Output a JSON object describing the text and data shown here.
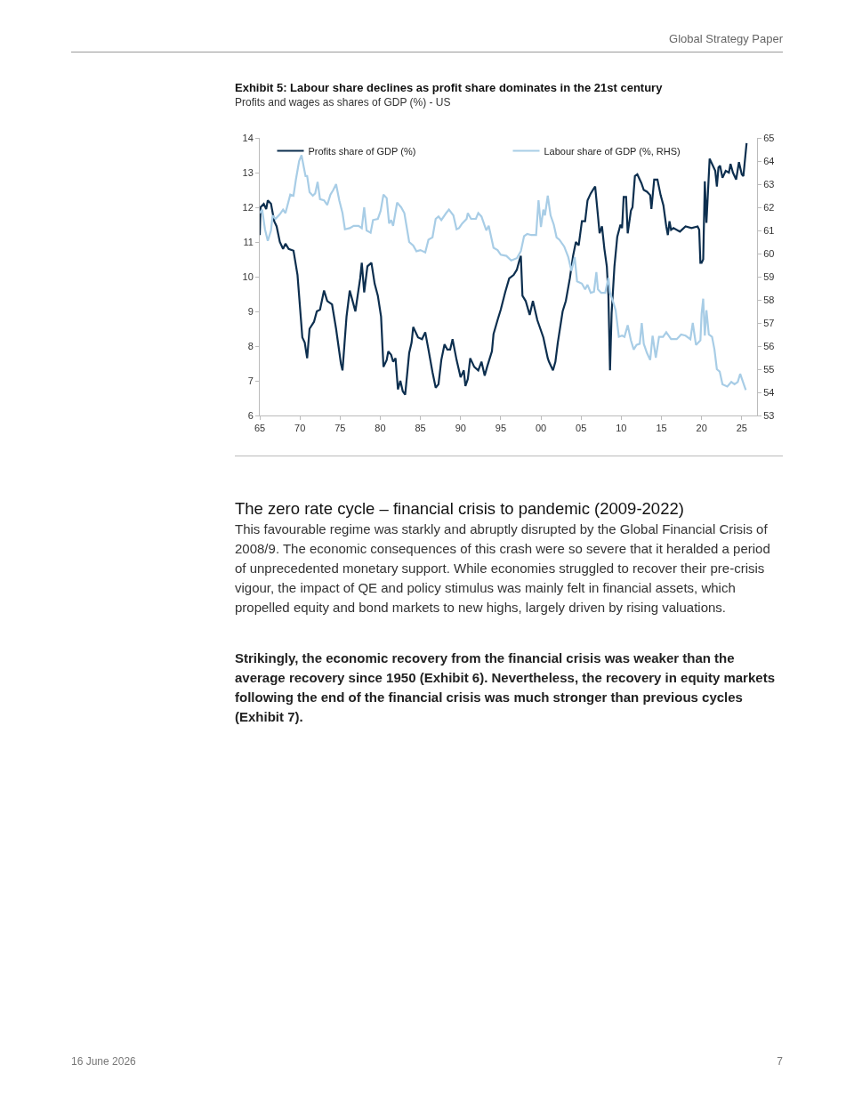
{
  "chart_data": {
    "type": "line",
    "title": "Exhibit 5: Labour share declines as profit share dominates in the 21st century",
    "subtitle": "Profits and wages as shares of GDP (%) - US",
    "annotations": [
      "Global Strategy Paper",
      "The zero rate cycle – financial crisis to pandemic (2009-2022)",
      "This favourable regime was starkly and abruptly disrupted by the Global Financial Crisis of 2008/9. The economic consequences of this crash were so severe that it heralded a period of unprecedented monetary support. While economies struggled to recover their pre-crisis vigour, the impact of QE and policy stimulus was mainly felt in financial assets, which propelled equity and bond markets to new highs, largely driven by rising valuations.",
      "Strikingly, the economic recovery from the financial crisis was weaker than the average recovery since 1950 (Exhibit 6). Nevertheless, the recovery in equity markets following the end of the financial crisis was much stronger than previous cycles (Exhibit 7).",
      "16 June 2026",
      "7"
    ],
    "series": [
      {
        "name": "Profits share of GDP (%)",
        "color": "#0d2f4f",
        "x": [
          1965.0,
          1965.1,
          1965.5,
          1965.8,
          1966.0,
          1966.4,
          1966.8,
          1967.1,
          1967.5,
          1967.9,
          1968.2,
          1968.6,
          1969.2,
          1969.7,
          1970.3,
          1970.6,
          1970.9,
          1971.2,
          1971.75,
          1972.1,
          1972.5,
          1973.0,
          1973.4,
          1974.0,
          1974.5,
          1975.1,
          1975.3,
          1975.8,
          1976.2,
          1976.5,
          1976.9,
          1977.5,
          1977.7,
          1978.0,
          1978.4,
          1978.9,
          1979.3,
          1979.7,
          1980.1,
          1980.4,
          1980.8,
          1981.0,
          1981.35,
          1981.6,
          1981.9,
          1982.2,
          1982.5,
          1982.8,
          1983.1,
          1983.6,
          1983.9,
          1984.1,
          1984.7,
          1985.2,
          1985.6,
          1986.0,
          1986.5,
          1986.9,
          1987.25,
          1987.6,
          1988.0,
          1988.35,
          1988.7,
          1989.0,
          1989.5,
          1990.0,
          1990.4,
          1990.6,
          1990.9,
          1991.2,
          1991.7,
          1992.2,
          1992.6,
          1993.0,
          1993.3,
          1993.9,
          1994.1,
          1994.6,
          1995.0,
          1995.55,
          1996.05,
          1996.6,
          1997.0,
          1997.35,
          1997.5,
          1997.7,
          1998.1,
          1998.6,
          1999.0,
          1999.55,
          2000.3,
          2000.85,
          2001.0,
          2001.5,
          2001.8,
          2002.1,
          2002.7,
          2003.1,
          2003.6,
          2004.0,
          2004.35,
          2004.7,
          2005.1,
          2005.5,
          2005.8,
          2006.2,
          2006.6,
          2006.75,
          2007.1,
          2007.3,
          2007.6,
          2007.9,
          2008.2,
          2008.4,
          2008.6,
          2008.8,
          2009.15,
          2009.5,
          2009.9,
          2010.1,
          2010.3,
          2010.6,
          2010.8,
          2011.2,
          2011.4,
          2011.7,
          2012.0,
          2012.5,
          2012.8,
          2013.2,
          2013.6,
          2013.75,
          2014.1,
          2014.5,
          2014.9,
          2015.25,
          2015.6,
          2015.8,
          2016.0,
          2016.2,
          2016.5,
          2017.3,
          2018.0,
          2018.75,
          2019.5,
          2019.7,
          2019.85,
          2020.0,
          2020.2,
          2020.4,
          2020.6,
          2021.0,
          2021.3,
          2021.7,
          2021.9,
          2022.1,
          2022.3,
          2022.6,
          2023.0,
          2023.4,
          2023.6,
          2023.9,
          2024.3,
          2024.65,
          2025.0,
          2025.2,
          2025.6
        ],
        "values": [
          11.2,
          12.0,
          12.1,
          11.95,
          12.2,
          12.1,
          11.6,
          11.45,
          11.0,
          10.8,
          10.95,
          10.8,
          10.75,
          10.05,
          8.25,
          8.1,
          7.65,
          8.5,
          8.7,
          9.0,
          9.05,
          9.6,
          9.3,
          9.2,
          8.5,
          7.5,
          7.3,
          8.85,
          9.6,
          9.35,
          9.0,
          9.95,
          10.4,
          9.55,
          10.3,
          10.4,
          9.8,
          9.45,
          8.85,
          7.4,
          7.6,
          7.85,
          7.75,
          7.55,
          7.65,
          6.75,
          7.0,
          6.7,
          6.6,
          7.8,
          8.1,
          8.55,
          8.25,
          8.2,
          8.4,
          7.9,
          7.25,
          6.8,
          6.9,
          7.6,
          8.05,
          7.9,
          7.9,
          8.2,
          7.6,
          7.1,
          7.3,
          6.85,
          7.05,
          7.65,
          7.4,
          7.3,
          7.55,
          7.15,
          7.4,
          7.85,
          8.35,
          8.75,
          9.05,
          9.55,
          9.95,
          10.05,
          10.2,
          10.5,
          10.6,
          9.45,
          9.3,
          8.9,
          9.3,
          8.75,
          8.25,
          7.65,
          7.55,
          7.3,
          7.55,
          8.1,
          9.0,
          9.3,
          9.95,
          10.6,
          11.0,
          10.9,
          11.6,
          11.6,
          12.2,
          12.4,
          12.55,
          12.6,
          11.75,
          11.25,
          11.45,
          10.8,
          10.3,
          9.45,
          7.3,
          8.95,
          10.3,
          11.15,
          11.5,
          11.4,
          12.3,
          12.3,
          11.25,
          11.9,
          12.0,
          12.9,
          12.95,
          12.7,
          12.5,
          12.45,
          12.35,
          11.95,
          12.8,
          12.8,
          12.35,
          12.05,
          11.45,
          11.2,
          11.6,
          11.35,
          11.4,
          11.3,
          11.45,
          11.4,
          11.45,
          11.35,
          10.4,
          10.4,
          10.5,
          12.75,
          11.55,
          13.4,
          13.25,
          13.05,
          12.6,
          13.15,
          13.2,
          12.85,
          13.05,
          13.0,
          13.25,
          13.0,
          12.8,
          13.3,
          12.95,
          12.9,
          13.85
        ]
      },
      {
        "name": "Labour share of GDP (%, RHS)",
        "color": "#a8cde6",
        "axis": "y2",
        "x": [
          1965.0,
          1965.3,
          1965.65,
          1966.0,
          1966.4,
          1966.6,
          1966.95,
          1967.5,
          1967.9,
          1968.2,
          1968.8,
          1969.2,
          1969.5,
          1969.9,
          1970.2,
          1970.5,
          1970.7,
          1970.9,
          1971.2,
          1971.6,
          1971.9,
          1972.2,
          1972.5,
          1973.0,
          1973.4,
          1973.8,
          1974.15,
          1974.5,
          1974.9,
          1975.3,
          1975.6,
          1976.2,
          1976.7,
          1977.3,
          1977.7,
          1978.0,
          1978.3,
          1978.8,
          1979.1,
          1979.7,
          1980.05,
          1980.4,
          1980.8,
          1981.1,
          1981.35,
          1981.6,
          1982.1,
          1982.6,
          1983.0,
          1983.6,
          1984.1,
          1984.5,
          1985.0,
          1985.6,
          1986.0,
          1986.5,
          1986.9,
          1987.25,
          1987.6,
          1988.2,
          1988.55,
          1989.1,
          1989.5,
          1989.8,
          1990.2,
          1990.75,
          1990.9,
          1991.3,
          1991.9,
          1992.2,
          1992.6,
          1993.2,
          1993.5,
          1994.1,
          1994.6,
          1995.0,
          1995.7,
          1996.3,
          1997.0,
          1997.5,
          1997.9,
          1998.3,
          1998.8,
          1999.4,
          1999.7,
          2000.0,
          2000.3,
          2000.5,
          2000.85,
          2001.2,
          2001.6,
          2001.95,
          2002.3,
          2002.9,
          2003.4,
          2003.8,
          2004.2,
          2004.5,
          2005.1,
          2005.5,
          2005.8,
          2006.2,
          2006.6,
          2006.9,
          2007.1,
          2007.5,
          2008.0,
          2008.4,
          2008.6,
          2009.0,
          2009.3,
          2009.7,
          2010.1,
          2010.4,
          2010.8,
          2011.2,
          2011.55,
          2011.9,
          2012.3,
          2012.55,
          2012.8,
          2013.2,
          2013.6,
          2013.9,
          2014.3,
          2014.7,
          2015.2,
          2015.6,
          2016.2,
          2016.9,
          2017.45,
          2018.0,
          2018.6,
          2018.9,
          2019.3,
          2019.85,
          2020.0,
          2020.2,
          2020.4,
          2020.6,
          2020.9,
          2021.3,
          2021.6,
          2021.9,
          2022.25,
          2022.6,
          2023.2,
          2023.7,
          2024.1,
          2024.5,
          2024.8,
          2025.2,
          2025.5
        ],
        "values": [
          61.75,
          61.9,
          61.05,
          60.55,
          61.0,
          61.65,
          61.5,
          61.7,
          61.9,
          61.75,
          62.55,
          62.5,
          63.2,
          64.0,
          64.25,
          63.7,
          63.35,
          63.35,
          62.65,
          62.5,
          62.6,
          63.1,
          62.35,
          62.3,
          62.1,
          62.55,
          62.75,
          63.0,
          62.3,
          61.75,
          61.05,
          61.1,
          61.2,
          61.2,
          61.1,
          62.0,
          61.0,
          60.9,
          61.45,
          61.5,
          61.85,
          62.55,
          62.4,
          61.3,
          61.45,
          61.2,
          62.2,
          62.0,
          61.75,
          60.5,
          60.35,
          60.1,
          60.15,
          60.05,
          60.6,
          60.7,
          61.5,
          61.6,
          61.45,
          61.75,
          61.9,
          61.65,
          61.05,
          61.1,
          61.3,
          61.5,
          61.75,
          61.5,
          61.5,
          61.75,
          61.6,
          61.0,
          61.2,
          60.25,
          60.15,
          59.95,
          59.9,
          59.7,
          59.8,
          60.1,
          60.75,
          60.85,
          60.8,
          60.8,
          62.3,
          61.15,
          61.9,
          61.65,
          62.5,
          61.65,
          61.25,
          60.7,
          60.6,
          60.3,
          59.85,
          59.25,
          59.85,
          58.8,
          58.7,
          58.45,
          58.65,
          58.3,
          58.35,
          59.2,
          58.45,
          58.3,
          58.3,
          58.95,
          58.3,
          57.9,
          57.55,
          56.4,
          56.45,
          56.4,
          56.9,
          56.25,
          55.85,
          56.05,
          56.1,
          57.0,
          56.1,
          55.7,
          55.4,
          56.45,
          55.5,
          56.4,
          56.4,
          56.6,
          56.3,
          56.3,
          56.5,
          56.45,
          56.3,
          57.0,
          56.05,
          56.25,
          57.4,
          58.05,
          56.45,
          57.55,
          56.5,
          56.4,
          55.85,
          55.0,
          54.9,
          54.35,
          54.25,
          54.45,
          54.35,
          54.45,
          54.8,
          54.4,
          54.1
        ]
      }
    ],
    "xlim": [
      1965,
      2026.9
    ],
    "xticks": [
      {
        "value": 1965,
        "label": "65"
      },
      {
        "value": 1970,
        "label": "70"
      },
      {
        "value": 1975,
        "label": "75"
      },
      {
        "value": 1980,
        "label": "80"
      },
      {
        "value": 1985,
        "label": "85"
      },
      {
        "value": 1990,
        "label": "90"
      },
      {
        "value": 1995,
        "label": "95"
      },
      {
        "value": 2000,
        "label": "00"
      },
      {
        "value": 2005,
        "label": "05"
      },
      {
        "value": 2010,
        "label": "10"
      },
      {
        "value": 2015,
        "label": "15"
      },
      {
        "value": 2020,
        "label": "20"
      },
      {
        "value": 2025,
        "label": "25"
      }
    ],
    "ylim": [
      6,
      14
    ],
    "yticks": [
      6,
      7,
      8,
      9,
      10,
      11,
      12,
      13,
      14
    ],
    "y2lim": [
      53,
      65
    ],
    "y2ticks": [
      53,
      54,
      55,
      56,
      57,
      58,
      59,
      60,
      61,
      62,
      63,
      64,
      65
    ],
    "grid": false,
    "legend": "top",
    "line_style": "solid",
    "marker": "none"
  }
}
